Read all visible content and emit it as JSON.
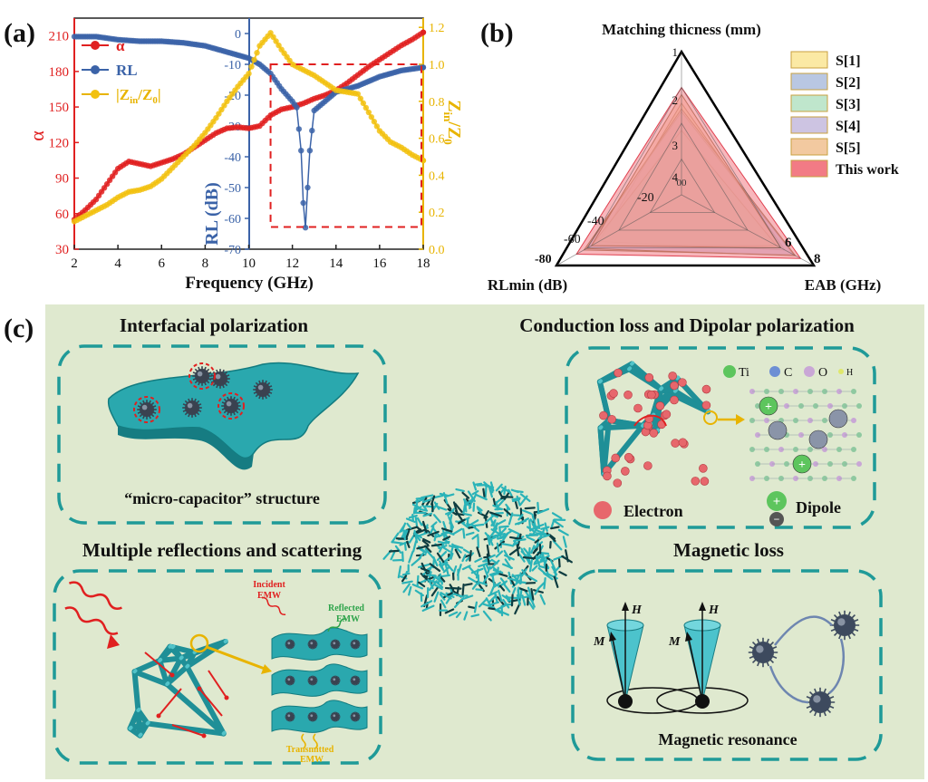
{
  "panel_labels": {
    "a": "(a)",
    "b": "(b)",
    "c": "(c)"
  },
  "colors": {
    "alpha": "#e02020",
    "rl": "#3b63a8",
    "z": "#f2c10f",
    "panel_c_bg": "#dfe9cf",
    "teal": "#1f9a98",
    "radar_fills": [
      "#fbe9a4",
      "#b9c7e2",
      "#bfe6cc",
      "#cdc4e2",
      "#f2c9a0",
      "#f27b85"
    ]
  },
  "chart_data": [
    {
      "type": "line",
      "title": "",
      "xlabel": "Frequency (GHz)",
      "xlim": [
        2,
        18
      ],
      "x_ticks": [
        "2",
        "4",
        "6",
        "8",
        "10",
        "12",
        "14",
        "16",
        "18"
      ],
      "axes": {
        "left": {
          "label": "α",
          "lim": [
            30,
            225
          ],
          "ticks": [
            "30",
            "60",
            "90",
            "120",
            "150",
            "180",
            "210"
          ]
        },
        "middle": {
          "label": "RL (dB)",
          "lim": [
            -70,
            5
          ],
          "ticks": [
            "0",
            "-10",
            "-20",
            "-30",
            "-40",
            "-50",
            "-60",
            "-70"
          ]
        },
        "right": {
          "label": "Z_in/Z_0",
          "lim": [
            0,
            1.25
          ],
          "ticks": [
            "0.0",
            "0.2",
            "0.4",
            "0.6",
            "0.8",
            "1.0",
            "1.2"
          ]
        }
      },
      "legend": [
        "α",
        "RL",
        "|Z_in/Z_0|"
      ],
      "highlight_box": {
        "x": [
          11,
          18
        ],
        "z": [
          0.12,
          1.0
        ]
      },
      "series": [
        {
          "name": "α",
          "axis": "left",
          "x": [
            2,
            2.5,
            3,
            3.5,
            4,
            4.5,
            5,
            5.5,
            6,
            6.5,
            7,
            7.5,
            8,
            8.5,
            9,
            9.5,
            10,
            10.5,
            11,
            11.5,
            12,
            12.5,
            13,
            13.5,
            14,
            14.5,
            15,
            15.5,
            16,
            16.5,
            17,
            17.5,
            18
          ],
          "y": [
            55,
            63,
            72,
            85,
            98,
            104,
            102,
            100,
            103,
            106,
            110,
            116,
            122,
            128,
            132,
            133,
            132,
            134,
            143,
            148,
            150,
            153,
            157,
            160,
            164,
            170,
            177,
            184,
            190,
            196,
            202,
            207,
            213
          ]
        },
        {
          "name": "RL",
          "axis": "middle",
          "x": [
            2,
            3,
            4,
            5,
            6,
            7,
            8,
            9,
            10,
            10.5,
            11,
            11.5,
            12,
            12.2,
            12.4,
            12.5,
            12.6,
            12.7,
            12.8,
            13,
            13.5,
            14,
            15,
            16,
            17,
            18
          ],
          "y": [
            -1,
            -1,
            -2,
            -2.5,
            -2.5,
            -3,
            -4,
            -6,
            -8,
            -10,
            -13,
            -18,
            -22,
            -24,
            -38,
            -55,
            -63,
            -50,
            -38,
            -25,
            -22,
            -19,
            -17,
            -14,
            -12,
            -11
          ]
        },
        {
          "name": "|Z_in/Z_0|",
          "axis": "right",
          "x": [
            2,
            2.5,
            3,
            3.5,
            4,
            4.5,
            5,
            5.5,
            6,
            6.5,
            7,
            7.5,
            8,
            8.5,
            9,
            9.5,
            10,
            10.5,
            11,
            11.5,
            12,
            12.5,
            13,
            13.5,
            14,
            14.5,
            15,
            15.5,
            16,
            16.5,
            17,
            17.5,
            18
          ],
          "y": [
            0.15,
            0.18,
            0.21,
            0.24,
            0.28,
            0.31,
            0.32,
            0.34,
            0.38,
            0.44,
            0.5,
            0.56,
            0.63,
            0.71,
            0.8,
            0.88,
            0.95,
            1.1,
            1.17,
            1.08,
            1.0,
            0.97,
            0.94,
            0.9,
            0.86,
            0.85,
            0.84,
            0.74,
            0.64,
            0.58,
            0.55,
            0.51,
            0.48
          ]
        }
      ]
    },
    {
      "type": "radar",
      "axes": [
        {
          "label": "Matching thicness (mm)",
          "ticks": [
            "1",
            "2",
            "3",
            "4"
          ]
        },
        {
          "label": "EAB (GHz)",
          "ticks": [
            "6",
            "8"
          ]
        },
        {
          "label": "RLmin (dB)",
          "ticks": [
            "-20",
            "-40",
            "-60",
            "-80"
          ]
        }
      ],
      "center_label": "00",
      "legend": [
        "S[1]",
        "S[2]",
        "S[3]",
        "S[4]",
        "S[5]",
        "This work"
      ],
      "series": [
        {
          "name": "S[1]",
          "values": [
            0.64,
            0.78,
            0.66
          ]
        },
        {
          "name": "S[2]",
          "values": [
            0.58,
            0.85,
            0.78
          ]
        },
        {
          "name": "S[3]",
          "values": [
            0.45,
            0.72,
            0.72
          ]
        },
        {
          "name": "S[4]",
          "values": [
            0.6,
            0.86,
            0.76
          ]
        },
        {
          "name": "S[5]",
          "values": [
            0.7,
            0.75,
            0.72
          ]
        },
        {
          "name": "This work",
          "values": [
            0.75,
            0.9,
            0.84
          ]
        }
      ]
    }
  ],
  "panel_c": {
    "interfacial": {
      "title": "Interfacial polarization",
      "caption": "“micro-capacitor” structure"
    },
    "multiple": {
      "title": "Multiple reflections and scattering",
      "incident_1": "Incident",
      "incident_2": "EMW",
      "reflected_1": "Reflected",
      "reflected_2": "EMW",
      "transmitted_1": "Transmitted",
      "transmitted_2": "EMW"
    },
    "conduction": {
      "title": "Conduction loss and Dipolar polarization",
      "legend_ti": "Ti",
      "legend_c": "C",
      "legend_o": "O",
      "legend_h": "H",
      "electron": "Electron",
      "dipole": "Dipole"
    },
    "magnetic": {
      "title": "Magnetic loss",
      "caption": "Magnetic resonance",
      "h1": "H",
      "m1": "M",
      "h2": "H",
      "m2": "M"
    }
  }
}
